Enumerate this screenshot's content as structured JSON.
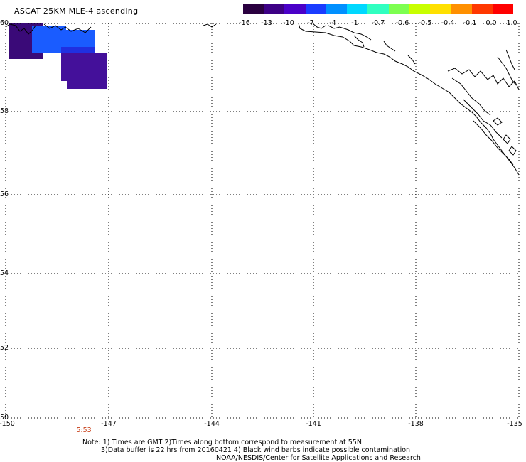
{
  "title": "ASCAT 25KM MLE-4 ascending",
  "colorbar": {
    "labels": [
      "-16",
      "-13",
      "-10",
      "-7",
      "-4",
      "-1",
      "-0.7",
      "-0.6",
      "-0.5",
      "-0.4",
      "-0.1",
      "0.0",
      "1.0"
    ],
    "colors": [
      "#2a0040",
      "#3d0085",
      "#4a00c8",
      "#1a3cff",
      "#0090ff",
      "#00d8ff",
      "#30ffc0",
      "#7dff50",
      "#c8ff00",
      "#ffe000",
      "#ff9000",
      "#ff3800",
      "#ff0000"
    ]
  },
  "lat_labels": [
    "60",
    "58",
    "56",
    "54",
    "52",
    "50"
  ],
  "lon_labels": [
    "-150",
    "-147",
    "-144",
    "-141",
    "-138",
    "-135"
  ],
  "time_label": "5:53",
  "notes": {
    "line1": "Note: 1) Times are GMT 2)Times along bottom correspond to measurement at 55N",
    "line2": "3)Data buffer is 22 hrs from 20160421 4) Black wind barbs indicate possible contamination",
    "line3": "NOAA/NESDIS/Center for Satellite Applications and Research"
  },
  "swath_colors": {
    "dark_purple": "#3a0a78",
    "purple": "#44109a",
    "blue": "#1a5cff",
    "blue_purple": "#2030e0"
  },
  "grid": true
}
